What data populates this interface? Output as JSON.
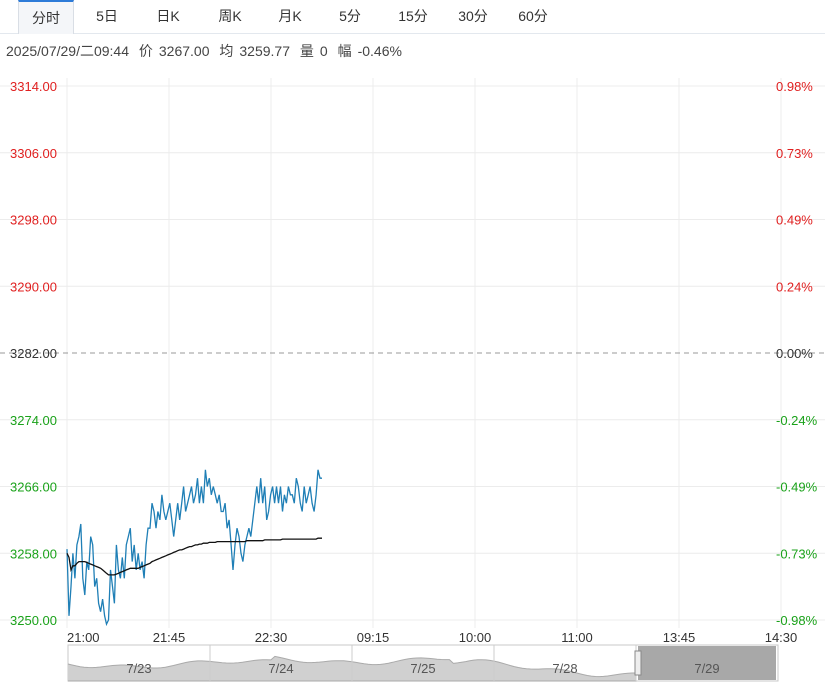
{
  "tabs": {
    "items": [
      "分时",
      "5日",
      "日K",
      "周K",
      "月K",
      "5分",
      "15分",
      "30分",
      "60分"
    ],
    "active_index": 0
  },
  "info": {
    "datetime": "2025/07/29/二09:44",
    "price_label": "价",
    "price": "3267.00",
    "avg_label": "均",
    "avg": "3259.77",
    "vol_label": "量",
    "vol": "0",
    "change_label": "幅",
    "change": "-0.46%"
  },
  "colors": {
    "up": "#e02020",
    "down": "#1aa21a",
    "flat": "#333333",
    "price_line": "#1f7fb6",
    "avg_line": "#111111",
    "nav_fill": "#d0d0d0",
    "nav_selected": "#999999"
  },
  "chart_data": {
    "type": "line",
    "ylim": [
      3250,
      3314
    ],
    "y_ticks": [
      "3314.00",
      "3306.00",
      "3298.00",
      "3290.00",
      "3282.00",
      "3274.00",
      "3266.00",
      "3258.00",
      "3250.00"
    ],
    "pct_ticks": [
      "0.98%",
      "0.73%",
      "0.49%",
      "0.24%",
      "0.00%",
      "-0.24%",
      "-0.49%",
      "-0.73%",
      "-0.98%"
    ],
    "base_price": 3282.0,
    "x_labels": [
      "21:00",
      "21:45",
      "22:30",
      "09:15",
      "10:00",
      "11:00",
      "13:45",
      "14:30"
    ],
    "x_slots": 14,
    "series": [
      {
        "values": [
          3258.5,
          3250.5,
          3254,
          3258,
          3255,
          3259,
          3260,
          3261.5,
          3255,
          3253,
          3257,
          3256,
          3260,
          3259,
          3254,
          3255,
          3252,
          3251,
          3252.5,
          3250.5,
          3249.5,
          3250,
          3256,
          3254,
          3252,
          3259,
          3256,
          3255,
          3257.5,
          3255,
          3259,
          3260,
          3261,
          3257,
          3259,
          3256,
          3258,
          3256,
          3257,
          3255,
          3259,
          3261,
          3261,
          3264,
          3263,
          3261,
          3263,
          3262,
          3265,
          3263,
          3262,
          3263,
          3264,
          3262,
          3260,
          3262,
          3264,
          3262,
          3264,
          3266,
          3263,
          3264,
          3265,
          3266,
          3264,
          3265,
          3267,
          3264,
          3266,
          3264,
          3268,
          3266,
          3267,
          3265,
          3266,
          3265,
          3264,
          3265,
          3263,
          3263,
          3264,
          3261,
          3262,
          3259,
          3256,
          3259,
          3261,
          3260,
          3258,
          3257,
          3259,
          3260,
          3261,
          3260,
          3262,
          3264,
          3266,
          3264,
          3267,
          3264,
          3266,
          3262,
          3263,
          3265,
          3266,
          3264,
          3266,
          3264,
          3266,
          3263,
          3265,
          3264,
          3266,
          3265,
          3265,
          3264,
          3267,
          3266,
          3264,
          3263,
          3266,
          3264,
          3265,
          3266,
          3264,
          3263,
          3265,
          3268,
          3267,
          3267
        ],
        "avg_values": [
          3258,
          3257.5,
          3256,
          3256.5,
          3256.5,
          3256.8,
          3257,
          3257,
          3257,
          3257,
          3256.9,
          3256.8,
          3256.7,
          3256.6,
          3256.5,
          3256.4,
          3256.3,
          3256.2,
          3256,
          3255.8,
          3255.6,
          3255.4,
          3255.4,
          3255.4,
          3255.4,
          3255.5,
          3255.6,
          3255.7,
          3255.8,
          3255.9,
          3256,
          3256.1,
          3256.2,
          3256.2,
          3256.2,
          3256.2,
          3256.2,
          3256.3,
          3256.4,
          3256.5,
          3256.6,
          3256.7,
          3256.8,
          3257,
          3257.1,
          3257.2,
          3257.3,
          3257.4,
          3257.5,
          3257.6,
          3257.7,
          3257.8,
          3257.9,
          3258,
          3258.1,
          3258.2,
          3258.3,
          3258.4,
          3258.4,
          3258.5,
          3258.6,
          3258.7,
          3258.8,
          3258.8,
          3258.9,
          3259,
          3259,
          3259.1,
          3259.1,
          3259.2,
          3259.2,
          3259.2,
          3259.3,
          3259.3,
          3259.3,
          3259.3,
          3259.4,
          3259.4,
          3259.4,
          3259.4,
          3259.4,
          3259.4,
          3259.4,
          3259.4,
          3259.4,
          3259.4,
          3259.4,
          3259.4,
          3259.4,
          3259.4,
          3259.4,
          3259.5,
          3259.5,
          3259.5,
          3259.5,
          3259.5,
          3259.5,
          3259.5,
          3259.5,
          3259.5,
          3259.6,
          3259.6,
          3259.6,
          3259.6,
          3259.6,
          3259.6,
          3259.6,
          3259.6,
          3259.6,
          3259.7,
          3259.7,
          3259.7,
          3259.7,
          3259.7,
          3259.7,
          3259.7,
          3259.7,
          3259.7,
          3259.7,
          3259.7,
          3259.7,
          3259.7,
          3259.7,
          3259.7,
          3259.7,
          3259.7,
          3259.7,
          3259.8,
          3259.8,
          3259.8
        ]
      }
    ],
    "grid": true
  },
  "navigator": {
    "labels": [
      "7/23",
      "7/24",
      "7/25",
      "7/28",
      "7/29"
    ],
    "selected_index": 4
  }
}
